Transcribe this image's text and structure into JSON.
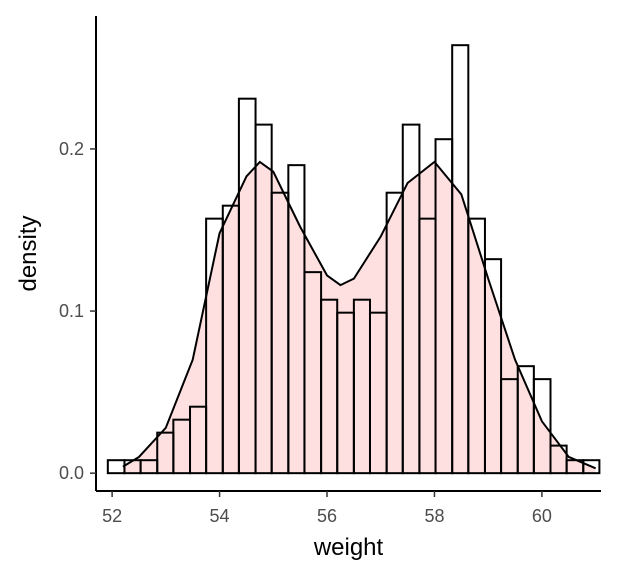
{
  "chart_data": {
    "type": "histogram",
    "xlabel": "weight",
    "ylabel": "density",
    "xlim": [
      51.7,
      61.1
    ],
    "ylim": [
      -0.011,
      0.282
    ],
    "x_ticks": [
      52,
      54,
      56,
      58,
      60
    ],
    "y_ticks": [
      0.0,
      0.1,
      0.2
    ],
    "y_tick_labels": [
      "0.0",
      "0.1",
      "0.2"
    ],
    "grid": false,
    "legend": "none",
    "bins": [
      {
        "x0": 51.92,
        "x1": 52.23,
        "density": 0.008
      },
      {
        "x0": 52.23,
        "x1": 52.53,
        "density": 0.008
      },
      {
        "x0": 52.53,
        "x1": 52.84,
        "density": 0.008
      },
      {
        "x0": 52.84,
        "x1": 53.14,
        "density": 0.025
      },
      {
        "x0": 53.14,
        "x1": 53.45,
        "density": 0.033
      },
      {
        "x0": 53.45,
        "x1": 53.75,
        "density": 0.041
      },
      {
        "x0": 53.75,
        "x1": 54.06,
        "density": 0.157
      },
      {
        "x0": 54.06,
        "x1": 54.36,
        "density": 0.165
      },
      {
        "x0": 54.36,
        "x1": 54.67,
        "density": 0.231
      },
      {
        "x0": 54.67,
        "x1": 54.97,
        "density": 0.215
      },
      {
        "x0": 54.97,
        "x1": 55.28,
        "density": 0.173
      },
      {
        "x0": 55.28,
        "x1": 55.58,
        "density": 0.19
      },
      {
        "x0": 55.58,
        "x1": 55.89,
        "density": 0.124
      },
      {
        "x0": 55.89,
        "x1": 56.19,
        "density": 0.107
      },
      {
        "x0": 56.19,
        "x1": 56.5,
        "density": 0.099
      },
      {
        "x0": 56.5,
        "x1": 56.8,
        "density": 0.107
      },
      {
        "x0": 56.8,
        "x1": 57.11,
        "density": 0.099
      },
      {
        "x0": 57.11,
        "x1": 57.41,
        "density": 0.173
      },
      {
        "x0": 57.41,
        "x1": 57.72,
        "density": 0.215
      },
      {
        "x0": 57.72,
        "x1": 58.02,
        "density": 0.157
      },
      {
        "x0": 58.02,
        "x1": 58.33,
        "density": 0.206
      },
      {
        "x0": 58.33,
        "x1": 58.63,
        "density": 0.264
      },
      {
        "x0": 58.63,
        "x1": 58.94,
        "density": 0.157
      },
      {
        "x0": 58.94,
        "x1": 59.24,
        "density": 0.132
      },
      {
        "x0": 59.24,
        "x1": 59.55,
        "density": 0.058
      },
      {
        "x0": 59.55,
        "x1": 59.85,
        "density": 0.066
      },
      {
        "x0": 59.85,
        "x1": 60.16,
        "density": 0.058
      },
      {
        "x0": 60.16,
        "x1": 60.46,
        "density": 0.017
      },
      {
        "x0": 60.46,
        "x1": 60.77,
        "density": 0.008
      },
      {
        "x0": 60.77,
        "x1": 61.07,
        "density": 0.008
      }
    ],
    "density_curve": {
      "x": [
        52.2,
        52.5,
        53.0,
        53.5,
        54.0,
        54.5,
        54.75,
        55.0,
        55.5,
        56.0,
        56.25,
        56.5,
        57.0,
        57.5,
        58.0,
        58.5,
        59.0,
        59.5,
        60.0,
        60.5,
        61.0
      ],
      "y": [
        0.004,
        0.01,
        0.028,
        0.07,
        0.148,
        0.183,
        0.192,
        0.186,
        0.152,
        0.122,
        0.116,
        0.12,
        0.146,
        0.179,
        0.192,
        0.172,
        0.12,
        0.07,
        0.032,
        0.01,
        0.003
      ],
      "fill": "#ffe0e0",
      "stroke": "#000000"
    },
    "bar_stroke": "#000000"
  }
}
